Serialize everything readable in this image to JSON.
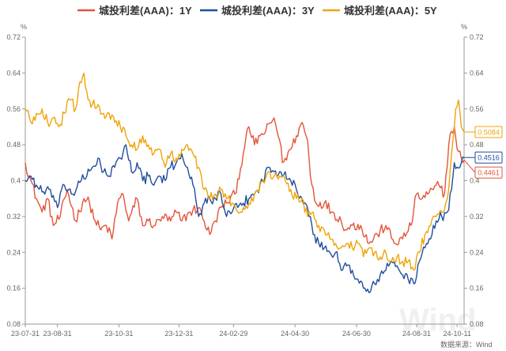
{
  "chart_data": {
    "type": "line",
    "title": "",
    "y_unit_left": "%",
    "y_unit_right": "%",
    "ylim": [
      0.08,
      0.72
    ],
    "yticks": [
      "0.08",
      "0.16",
      "0.24",
      "0.32",
      "0.4",
      "0.48",
      "0.56",
      "0.64",
      "0.72"
    ],
    "x_tick_labels": [
      "23-07-31",
      "23-08-31",
      "23-10-31",
      "23-12-31",
      "24-02-29",
      "24-04-30",
      "24-06-30",
      "24-08-31",
      "24-10-11"
    ],
    "x_tick_positions": [
      0,
      23,
      67,
      110,
      149,
      193,
      237,
      280,
      309
    ],
    "n_points": 315,
    "grid": false,
    "legend_position": "top-center",
    "series": [
      {
        "name": "城投利差(AAA)：1Y",
        "color": "#e2553a",
        "end_label": "0.4461",
        "keyframes": [
          [
            0,
            0.44
          ],
          [
            4,
            0.4
          ],
          [
            8,
            0.36
          ],
          [
            12,
            0.33
          ],
          [
            16,
            0.36
          ],
          [
            20,
            0.3
          ],
          [
            25,
            0.32
          ],
          [
            30,
            0.38
          ],
          [
            36,
            0.31
          ],
          [
            42,
            0.36
          ],
          [
            46,
            0.35
          ],
          [
            50,
            0.31
          ],
          [
            54,
            0.29
          ],
          [
            58,
            0.3
          ],
          [
            62,
            0.27
          ],
          [
            66,
            0.35
          ],
          [
            70,
            0.37
          ],
          [
            74,
            0.31
          ],
          [
            80,
            0.36
          ],
          [
            84,
            0.3
          ],
          [
            88,
            0.31
          ],
          [
            93,
            0.3
          ],
          [
            98,
            0.32
          ],
          [
            104,
            0.31
          ],
          [
            108,
            0.33
          ],
          [
            112,
            0.31
          ],
          [
            118,
            0.33
          ],
          [
            124,
            0.34
          ],
          [
            128,
            0.31
          ],
          [
            132,
            0.28
          ],
          [
            136,
            0.31
          ],
          [
            140,
            0.34
          ],
          [
            144,
            0.35
          ],
          [
            150,
            0.37
          ],
          [
            156,
            0.46
          ],
          [
            160,
            0.52
          ],
          [
            164,
            0.48
          ],
          [
            168,
            0.5
          ],
          [
            172,
            0.51
          ],
          [
            178,
            0.54
          ],
          [
            182,
            0.49
          ],
          [
            184,
            0.44
          ],
          [
            186,
            0.45
          ],
          [
            190,
            0.47
          ],
          [
            194,
            0.5
          ],
          [
            198,
            0.53
          ],
          [
            202,
            0.49
          ],
          [
            204,
            0.41
          ],
          [
            208,
            0.35
          ],
          [
            214,
            0.35
          ],
          [
            220,
            0.33
          ],
          [
            226,
            0.31
          ],
          [
            230,
            0.29
          ],
          [
            234,
            0.3
          ],
          [
            240,
            0.3
          ],
          [
            246,
            0.26
          ],
          [
            252,
            0.28
          ],
          [
            258,
            0.3
          ],
          [
            264,
            0.26
          ],
          [
            270,
            0.27
          ],
          [
            276,
            0.3
          ],
          [
            280,
            0.37
          ],
          [
            284,
            0.36
          ],
          [
            288,
            0.37
          ],
          [
            292,
            0.38
          ],
          [
            296,
            0.39
          ],
          [
            300,
            0.37
          ],
          [
            303,
            0.48
          ],
          [
            305,
            0.51
          ],
          [
            307,
            0.52
          ],
          [
            309,
            0.47
          ],
          [
            312,
            0.45
          ],
          [
            314,
            0.4461
          ]
        ]
      },
      {
        "name": "城投利差(AAA)：3Y",
        "color": "#1f4e9c",
        "end_label": "0.4516",
        "keyframes": [
          [
            0,
            0.4
          ],
          [
            4,
            0.41
          ],
          [
            8,
            0.39
          ],
          [
            14,
            0.37
          ],
          [
            18,
            0.38
          ],
          [
            23,
            0.34
          ],
          [
            28,
            0.39
          ],
          [
            34,
            0.37
          ],
          [
            40,
            0.4
          ],
          [
            44,
            0.41
          ],
          [
            48,
            0.43
          ],
          [
            52,
            0.45
          ],
          [
            56,
            0.42
          ],
          [
            60,
            0.41
          ],
          [
            64,
            0.43
          ],
          [
            68,
            0.45
          ],
          [
            72,
            0.48
          ],
          [
            76,
            0.42
          ],
          [
            80,
            0.44
          ],
          [
            84,
            0.4
          ],
          [
            88,
            0.41
          ],
          [
            92,
            0.39
          ],
          [
            96,
            0.41
          ],
          [
            100,
            0.4
          ],
          [
            104,
            0.43
          ],
          [
            108,
            0.44
          ],
          [
            112,
            0.46
          ],
          [
            116,
            0.43
          ],
          [
            120,
            0.39
          ],
          [
            124,
            0.32
          ],
          [
            128,
            0.35
          ],
          [
            132,
            0.36
          ],
          [
            136,
            0.36
          ],
          [
            140,
            0.37
          ],
          [
            144,
            0.32
          ],
          [
            148,
            0.33
          ],
          [
            152,
            0.34
          ],
          [
            156,
            0.35
          ],
          [
            160,
            0.36
          ],
          [
            164,
            0.37
          ],
          [
            170,
            0.4
          ],
          [
            174,
            0.43
          ],
          [
            178,
            0.42
          ],
          [
            182,
            0.42
          ],
          [
            186,
            0.42
          ],
          [
            190,
            0.4
          ],
          [
            194,
            0.38
          ],
          [
            198,
            0.36
          ],
          [
            202,
            0.34
          ],
          [
            206,
            0.28
          ],
          [
            210,
            0.26
          ],
          [
            214,
            0.25
          ],
          [
            218,
            0.24
          ],
          [
            222,
            0.24
          ],
          [
            226,
            0.2
          ],
          [
            230,
            0.21
          ],
          [
            234,
            0.2
          ],
          [
            238,
            0.18
          ],
          [
            242,
            0.16
          ],
          [
            246,
            0.15
          ],
          [
            250,
            0.17
          ],
          [
            254,
            0.19
          ],
          [
            258,
            0.2
          ],
          [
            262,
            0.22
          ],
          [
            266,
            0.21
          ],
          [
            270,
            0.19
          ],
          [
            274,
            0.18
          ],
          [
            278,
            0.17
          ],
          [
            282,
            0.22
          ],
          [
            286,
            0.25
          ],
          [
            290,
            0.27
          ],
          [
            294,
            0.31
          ],
          [
            298,
            0.32
          ],
          [
            302,
            0.33
          ],
          [
            305,
            0.38
          ],
          [
            307,
            0.44
          ],
          [
            309,
            0.43
          ],
          [
            312,
            0.44
          ],
          [
            314,
            0.4516
          ]
        ]
      },
      {
        "name": "城投利差(AAA)：5Y",
        "color": "#f0a30a",
        "end_label": "0.5084",
        "keyframes": [
          [
            0,
            0.56
          ],
          [
            4,
            0.53
          ],
          [
            8,
            0.55
          ],
          [
            12,
            0.56
          ],
          [
            16,
            0.53
          ],
          [
            20,
            0.54
          ],
          [
            24,
            0.52
          ],
          [
            28,
            0.55
          ],
          [
            32,
            0.58
          ],
          [
            36,
            0.56
          ],
          [
            39,
            0.62
          ],
          [
            42,
            0.64
          ],
          [
            45,
            0.58
          ],
          [
            48,
            0.57
          ],
          [
            52,
            0.57
          ],
          [
            56,
            0.55
          ],
          [
            60,
            0.55
          ],
          [
            64,
            0.53
          ],
          [
            68,
            0.52
          ],
          [
            72,
            0.5
          ],
          [
            76,
            0.48
          ],
          [
            80,
            0.47
          ],
          [
            84,
            0.5
          ],
          [
            88,
            0.48
          ],
          [
            92,
            0.46
          ],
          [
            96,
            0.47
          ],
          [
            100,
            0.43
          ],
          [
            104,
            0.46
          ],
          [
            108,
            0.45
          ],
          [
            112,
            0.47
          ],
          [
            116,
            0.48
          ],
          [
            120,
            0.46
          ],
          [
            124,
            0.43
          ],
          [
            128,
            0.38
          ],
          [
            132,
            0.36
          ],
          [
            136,
            0.37
          ],
          [
            140,
            0.38
          ],
          [
            144,
            0.36
          ],
          [
            148,
            0.35
          ],
          [
            152,
            0.33
          ],
          [
            156,
            0.34
          ],
          [
            160,
            0.35
          ],
          [
            164,
            0.37
          ],
          [
            170,
            0.4
          ],
          [
            174,
            0.42
          ],
          [
            178,
            0.41
          ],
          [
            182,
            0.41
          ],
          [
            186,
            0.4
          ],
          [
            190,
            0.38
          ],
          [
            194,
            0.36
          ],
          [
            198,
            0.36
          ],
          [
            202,
            0.32
          ],
          [
            206,
            0.33
          ],
          [
            210,
            0.3
          ],
          [
            214,
            0.29
          ],
          [
            218,
            0.27
          ],
          [
            222,
            0.26
          ],
          [
            226,
            0.25
          ],
          [
            230,
            0.26
          ],
          [
            234,
            0.25
          ],
          [
            238,
            0.26
          ],
          [
            242,
            0.23
          ],
          [
            246,
            0.25
          ],
          [
            250,
            0.24
          ],
          [
            254,
            0.23
          ],
          [
            258,
            0.24
          ],
          [
            262,
            0.22
          ],
          [
            266,
            0.23
          ],
          [
            270,
            0.22
          ],
          [
            274,
            0.22
          ],
          [
            278,
            0.2
          ],
          [
            282,
            0.24
          ],
          [
            286,
            0.28
          ],
          [
            290,
            0.3
          ],
          [
            294,
            0.32
          ],
          [
            298,
            0.33
          ],
          [
            302,
            0.36
          ],
          [
            304,
            0.42
          ],
          [
            306,
            0.49
          ],
          [
            308,
            0.56
          ],
          [
            310,
            0.58
          ],
          [
            312,
            0.52
          ],
          [
            314,
            0.5084
          ]
        ]
      }
    ]
  },
  "watermark": "Wind",
  "source": "数据来源：Wind"
}
